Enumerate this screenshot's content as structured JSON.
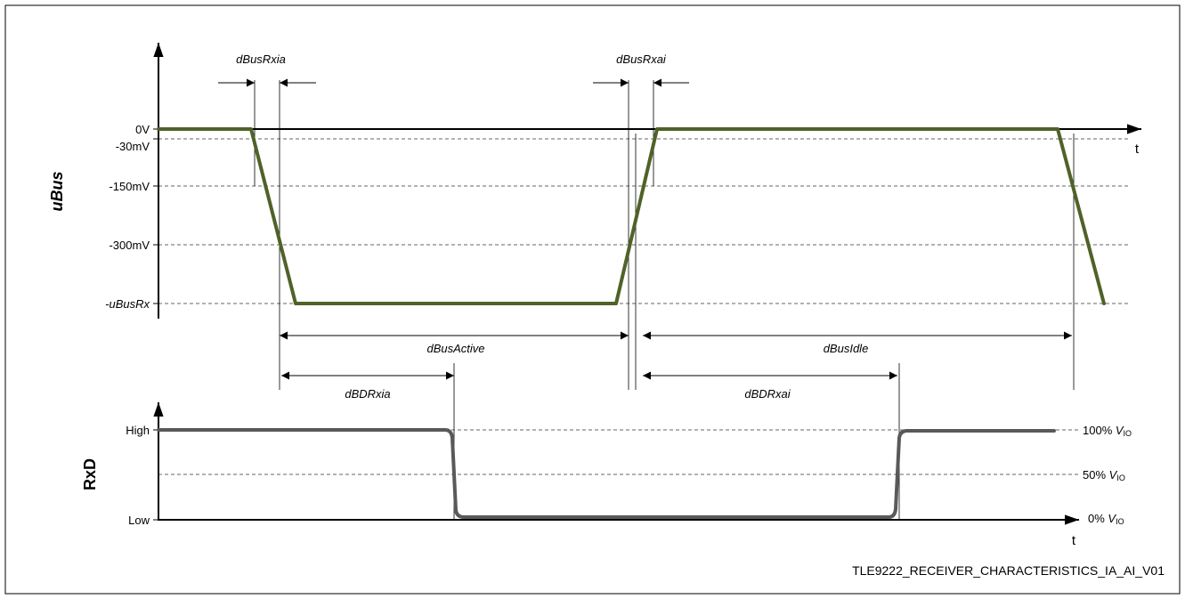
{
  "top_chart": {
    "y_axis_title": "uBus",
    "x_axis_label": "t",
    "levels": [
      {
        "label": "0V"
      },
      {
        "label": "-30mV"
      },
      {
        "label": "-150mV"
      },
      {
        "label": "-300mV"
      },
      {
        "label": "-uBusRx"
      }
    ],
    "timing_labels": {
      "rx_idle_active_threshold": "dBusRxia",
      "rx_active_idle_threshold": "dBusRxai",
      "active_duration": "dBusActive",
      "idle_duration": "dBusIdle"
    },
    "signal_color": "#4f6228"
  },
  "bottom_chart": {
    "y_axis_title": "RxD",
    "x_axis_label": "t",
    "levels": [
      {
        "label": "High"
      },
      {
        "label": "Low"
      }
    ],
    "right_labels": [
      {
        "prefix": "100% ",
        "symbol": "V",
        "sub": "IO"
      },
      {
        "prefix": "50% ",
        "symbol": "V",
        "sub": "IO"
      },
      {
        "prefix": "0% ",
        "symbol": "V",
        "sub": "IO"
      }
    ],
    "timing_labels": {
      "delay_idle_active": "dBDRxia",
      "delay_active_idle": "dBDRxai"
    },
    "signal_color": "#595959"
  },
  "footer": {
    "figure_id": "TLE9222_RECEIVER_CHARACTERISTICS_IA_AI_V01"
  }
}
